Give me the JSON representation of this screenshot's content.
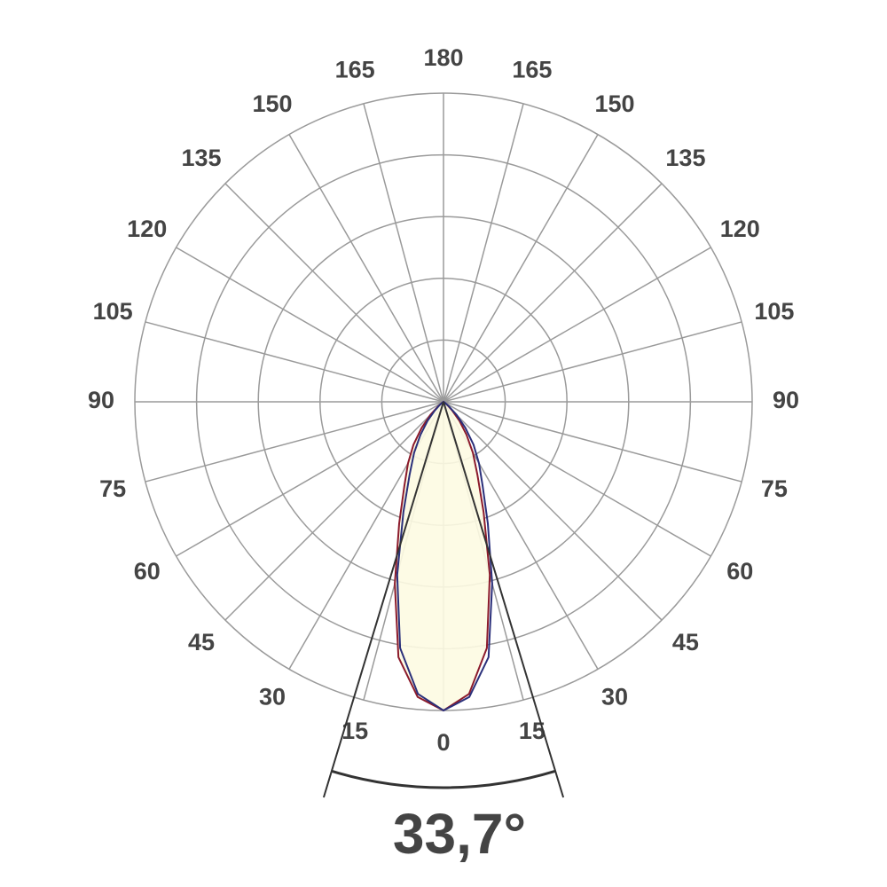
{
  "chart_data": {
    "type": "polar",
    "x": [
      -60,
      -55,
      -50,
      -45,
      -40,
      -35,
      -30,
      -25,
      -20,
      -15,
      -10,
      -5,
      0,
      5,
      10,
      15,
      20,
      25,
      30,
      35,
      40,
      45,
      50,
      55,
      60
    ],
    "rlim": [
      0,
      5
    ],
    "rticks": [
      1,
      2,
      3,
      4,
      5
    ],
    "angle_ticks": [
      {
        "value": -165,
        "label": "165"
      },
      {
        "value": -150,
        "label": "150"
      },
      {
        "value": -135,
        "label": "135"
      },
      {
        "value": -120,
        "label": "120"
      },
      {
        "value": -105,
        "label": "105"
      },
      {
        "value": -90,
        "label": "90"
      },
      {
        "value": -75,
        "label": "75"
      },
      {
        "value": -60,
        "label": "60"
      },
      {
        "value": -45,
        "label": "45"
      },
      {
        "value": -30,
        "label": "30"
      },
      {
        "value": -15,
        "label": "15"
      },
      0,
      15,
      30,
      45,
      60,
      75,
      90,
      105,
      120,
      135,
      150,
      165,
      180
    ],
    "grid": true,
    "series": [
      {
        "color": "#8b1a2b",
        "fill": "#fdfbe2",
        "values": [
          0,
          0.03,
          0.12,
          0.3,
          0.55,
          0.85,
          1.15,
          1.5,
          2.1,
          3.05,
          4.2,
          4.8,
          5,
          4.75,
          4.05,
          2.9,
          1.9,
          1.3,
          0.95,
          0.65,
          0.4,
          0.2,
          0.08,
          0.02,
          0
        ]
      },
      {
        "color": "#2a2f7a",
        "values": [
          0,
          0.02,
          0.08,
          0.2,
          0.4,
          0.65,
          0.95,
          1.3,
          1.9,
          2.9,
          4.05,
          4.75,
          5,
          4.8,
          4.2,
          3.05,
          2.1,
          1.5,
          1.15,
          0.85,
          0.55,
          0.3,
          0.12,
          0.03,
          0
        ]
      }
    ],
    "beam_angle": {
      "value": 33.7,
      "label": "33,7°"
    }
  }
}
